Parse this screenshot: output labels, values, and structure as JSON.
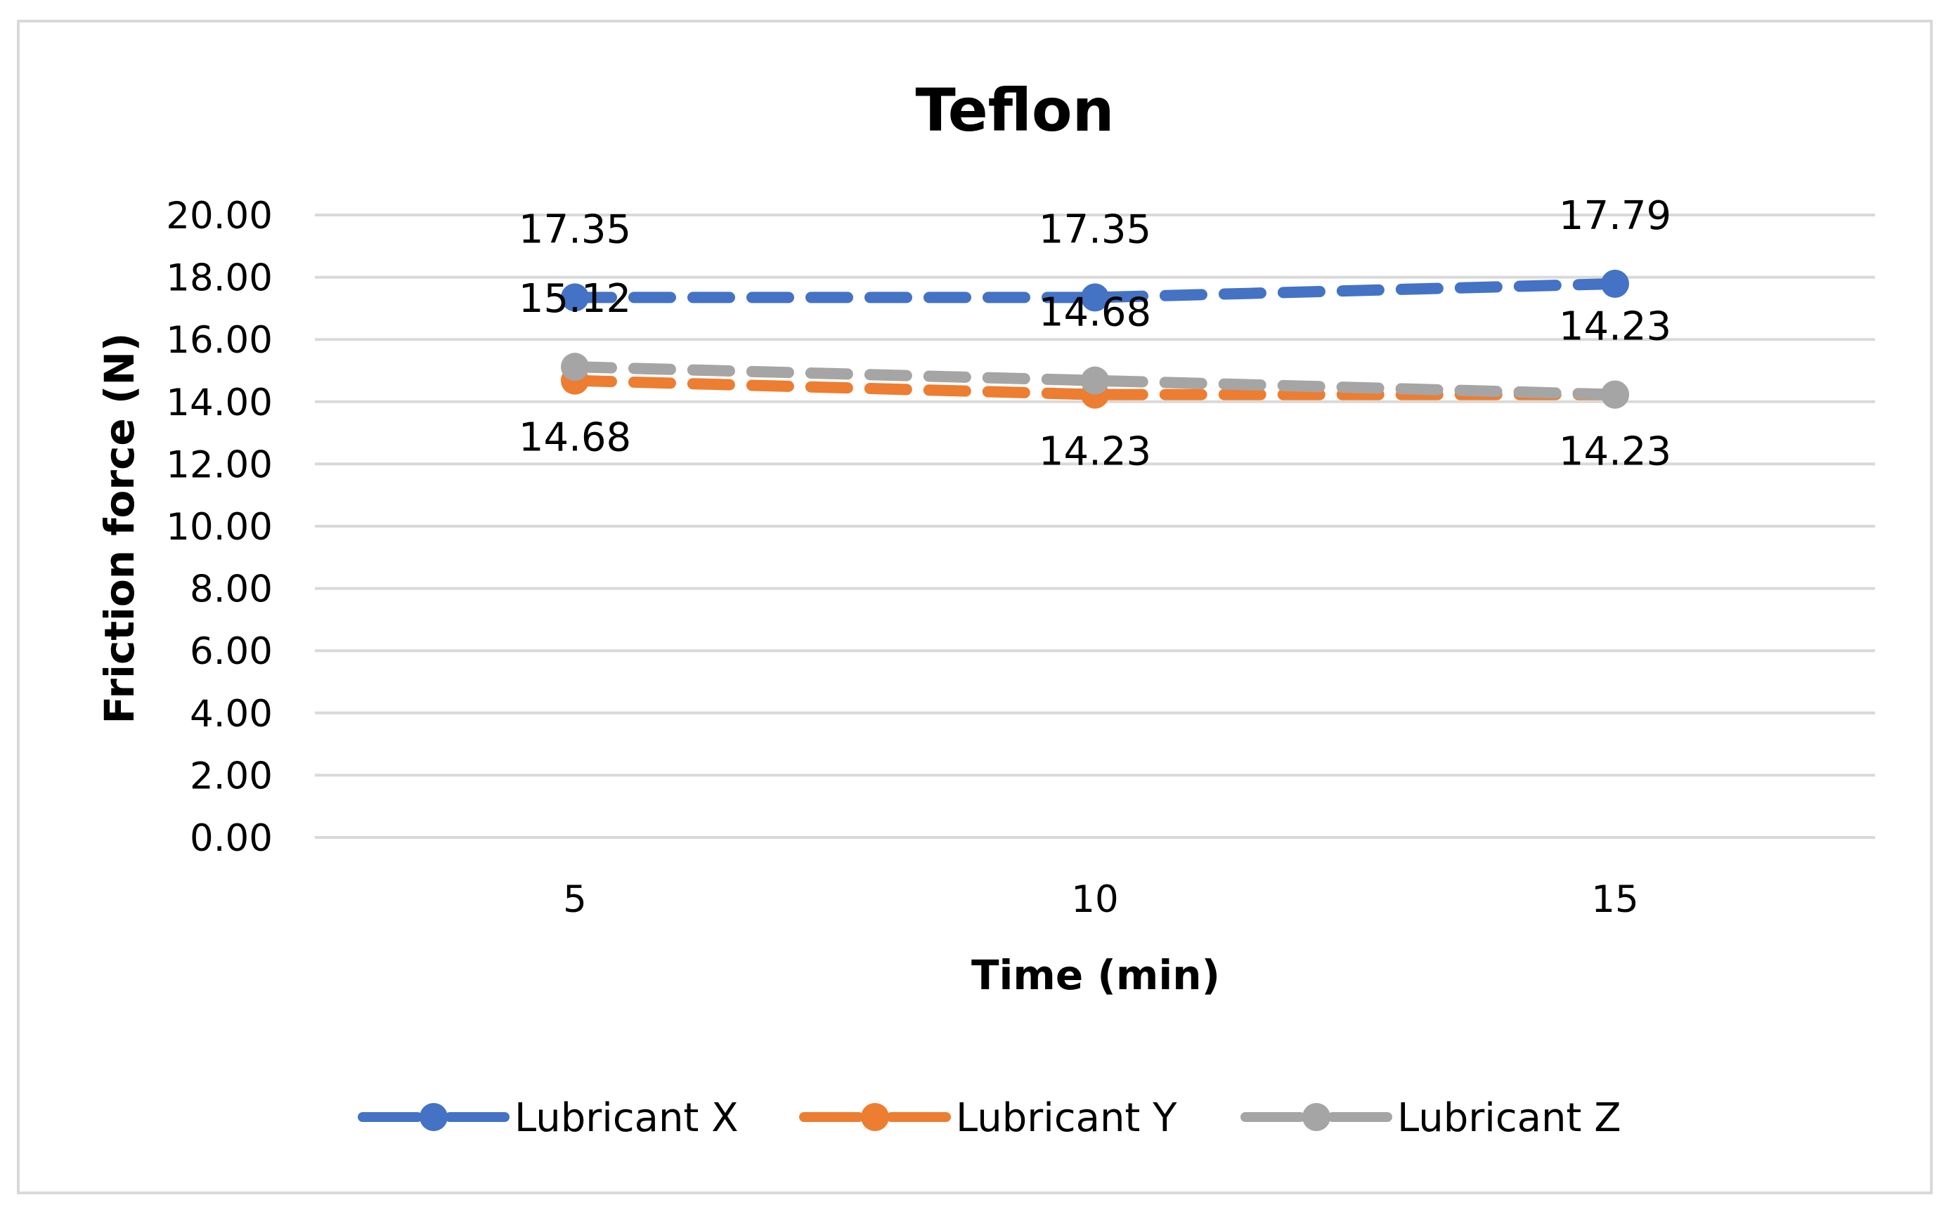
{
  "chart_data": {
    "type": "line",
    "title": "Teflon",
    "xlabel": "Time (min)",
    "ylabel": "Friction force (N)",
    "x": [
      5,
      10,
      15
    ],
    "xlim": [
      2.5,
      17.5
    ],
    "ylim": [
      0,
      20
    ],
    "yticks": [
      "0.00",
      "2.00",
      "4.00",
      "6.00",
      "8.00",
      "10.00",
      "12.00",
      "14.00",
      "16.00",
      "18.00",
      "20.00"
    ],
    "grid": true,
    "legend": "bottom",
    "series": [
      {
        "name": "Lubricant X",
        "color": "#4472c4",
        "values": [
          17.35,
          17.35,
          17.79
        ],
        "labels": [
          "17.35",
          "17.35",
          "17.79"
        ],
        "label_position": "above"
      },
      {
        "name": "Lubricant Y",
        "color": "#ed7d31",
        "values": [
          14.68,
          14.23,
          14.23
        ],
        "labels": [
          "14.68",
          "14.23",
          "14.23"
        ],
        "label_position": "below"
      },
      {
        "name": "Lubricant Z",
        "color": "#a5a5a5",
        "values": [
          15.12,
          14.68,
          14.23
        ],
        "labels": [
          "15.12",
          "14.68",
          "14.23"
        ],
        "label_position": "above"
      }
    ]
  }
}
